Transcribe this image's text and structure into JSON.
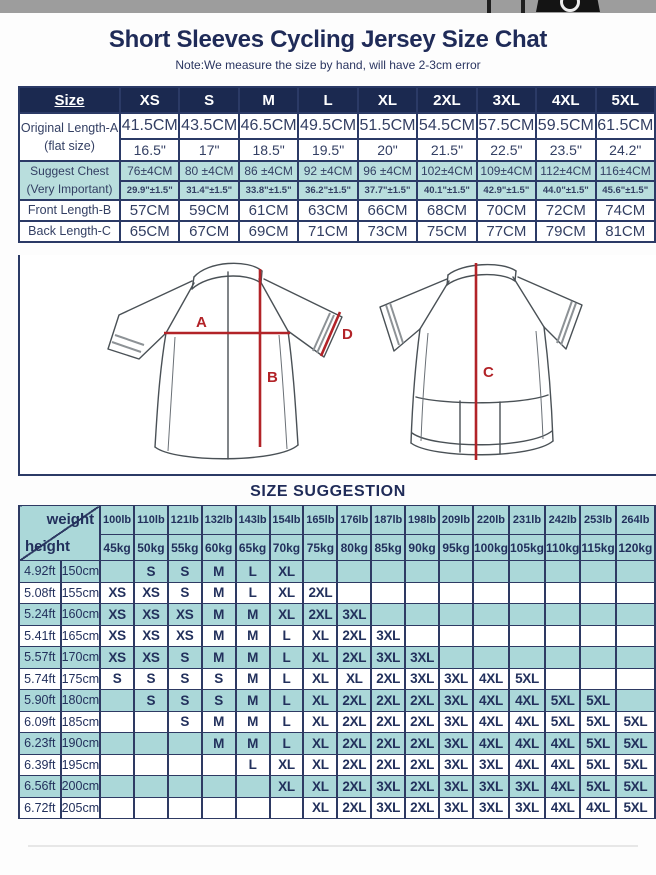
{
  "header": {
    "title": "Short Sleeves Cycling Jersey Size Chat",
    "note": "Note:We measure the size by hand, will have 2-3cm error"
  },
  "size_table": {
    "columns": [
      "Size",
      "XS",
      "S",
      "M",
      "L",
      "XL",
      "2XL",
      "3XL",
      "4XL",
      "5XL"
    ],
    "rows": [
      {
        "label_line1": "Original Length-A",
        "label_line2": "(flat size)",
        "highlight": false,
        "cm": [
          "41.5CM",
          "43.5CM",
          "46.5CM",
          "49.5CM",
          "51.5CM",
          "54.5CM",
          "57.5CM",
          "59.5CM",
          "61.5CM"
        ],
        "inch": [
          "16.5\"",
          "17\"",
          "18.5\"",
          "19.5\"",
          "20\"",
          "21.5\"",
          "22.5\"",
          "23.5\"",
          "24.2\""
        ]
      },
      {
        "label_line1": "Suggest Chest",
        "label_line2": "(Very Important)",
        "highlight": true,
        "cm": [
          "76±4CM",
          "80 ±4CM",
          "86 ±4CM",
          "92 ±4CM",
          "96 ±4CM",
          "102±4CM",
          "109±4CM",
          "112±4CM",
          "116±4CM"
        ],
        "inch": [
          "29.9\"±1.5\"",
          "31.4\"±1.5\"",
          "33.8\"±1.5\"",
          "36.2\"±1.5\"",
          "37.7\"±1.5\"",
          "40.1\"±1.5\"",
          "42.9\"±1.5\"",
          "44.0\"±1.5\"",
          "45.6\"±1.5\""
        ]
      },
      {
        "label_line1": "Front Length-B",
        "highlight": false,
        "cm": [
          "57CM",
          "59CM",
          "61CM",
          "63CM",
          "66CM",
          "68CM",
          "70CM",
          "72CM",
          "74CM"
        ]
      },
      {
        "label_line1": "Back Length-C",
        "highlight": false,
        "cm": [
          "65CM",
          "67CM",
          "69CM",
          "71CM",
          "73CM",
          "75CM",
          "77CM",
          "79CM",
          "81CM"
        ]
      }
    ]
  },
  "diagram": {
    "labels": {
      "a": "A",
      "b": "B",
      "c": "C",
      "d": "D"
    },
    "line_color": "#b22328"
  },
  "suggestion_table": {
    "heading": "SIZE SUGGESTION",
    "corner_top": "weight",
    "corner_bottom": "height",
    "weights_lb": [
      "100lb",
      "110lb",
      "121lb",
      "132lb",
      "143lb",
      "154lb",
      "165lb",
      "176lb",
      "187lb",
      "198lb",
      "209lb",
      "220lb",
      "231lb",
      "242lb",
      "253lb",
      "264lb"
    ],
    "weights_kg": [
      "45kg",
      "50kg",
      "55kg",
      "60kg",
      "65kg",
      "70kg",
      "75kg",
      "80kg",
      "85kg",
      "90kg",
      "95kg",
      "100kg",
      "105kg",
      "110kg",
      "115kg",
      "120kg"
    ],
    "rows": [
      {
        "ft": "4.92ft",
        "cm": "150cm",
        "sizes": [
          "",
          "S",
          "S",
          "M",
          "L",
          "XL",
          "",
          "",
          "",
          "",
          "",
          "",
          "",
          "",
          "",
          ""
        ]
      },
      {
        "ft": "5.08ft",
        "cm": "155cm",
        "sizes": [
          "XS",
          "XS",
          "S",
          "M",
          "L",
          "XL",
          "2XL",
          "",
          "",
          "",
          "",
          "",
          "",
          "",
          "",
          ""
        ]
      },
      {
        "ft": "5.24ft",
        "cm": "160cm",
        "sizes": [
          "XS",
          "XS",
          "XS",
          "M",
          "M",
          "XL",
          "2XL",
          "3XL",
          "",
          "",
          "",
          "",
          "",
          "",
          "",
          ""
        ]
      },
      {
        "ft": "5.41ft",
        "cm": "165cm",
        "sizes": [
          "XS",
          "XS",
          "XS",
          "M",
          "M",
          "L",
          "XL",
          "2XL",
          "3XL",
          "",
          "",
          "",
          "",
          "",
          "",
          ""
        ]
      },
      {
        "ft": "5.57ft",
        "cm": "170cm",
        "sizes": [
          "XS",
          "XS",
          "S",
          "M",
          "M",
          "L",
          "XL",
          "2XL",
          "3XL",
          "3XL",
          "",
          "",
          "",
          "",
          "",
          ""
        ]
      },
      {
        "ft": "5.74ft",
        "cm": "175cm",
        "sizes": [
          "S",
          "S",
          "S",
          "S",
          "M",
          "L",
          "XL",
          "XL",
          "2XL",
          "3XL",
          "3XL",
          "4XL",
          "5XL",
          "",
          "",
          ""
        ]
      },
      {
        "ft": "5.90ft",
        "cm": "180cm",
        "sizes": [
          "",
          "S",
          "S",
          "S",
          "M",
          "L",
          "XL",
          "2XL",
          "2XL",
          "2XL",
          "3XL",
          "4XL",
          "4XL",
          "5XL",
          "5XL",
          ""
        ]
      },
      {
        "ft": "6.09ft",
        "cm": "185cm",
        "sizes": [
          "",
          "",
          "S",
          "M",
          "M",
          "L",
          "XL",
          "2XL",
          "2XL",
          "2XL",
          "3XL",
          "4XL",
          "4XL",
          "5XL",
          "5XL",
          "5XL"
        ]
      },
      {
        "ft": "6.23ft",
        "cm": "190cm",
        "sizes": [
          "",
          "",
          "",
          "M",
          "M",
          "L",
          "XL",
          "2XL",
          "2XL",
          "2XL",
          "3XL",
          "4XL",
          "4XL",
          "4XL",
          "5XL",
          "5XL"
        ]
      },
      {
        "ft": "6.39ft",
        "cm": "195cm",
        "sizes": [
          "",
          "",
          "",
          "",
          "L",
          "XL",
          "XL",
          "2XL",
          "2XL",
          "2XL",
          "3XL",
          "3XL",
          "4XL",
          "4XL",
          "5XL",
          "5XL"
        ]
      },
      {
        "ft": "6.56ft",
        "cm": "200cm",
        "sizes": [
          "",
          "",
          "",
          "",
          "",
          "XL",
          "XL",
          "2XL",
          "3XL",
          "2XL",
          "3XL",
          "3XL",
          "3XL",
          "4XL",
          "5XL",
          "5XL"
        ]
      },
      {
        "ft": "6.72ft",
        "cm": "205cm",
        "sizes": [
          "",
          "",
          "",
          "",
          "",
          "",
          "XL",
          "2XL",
          "3XL",
          "2XL",
          "3XL",
          "3XL",
          "3XL",
          "4XL",
          "4XL",
          "5XL"
        ]
      }
    ]
  },
  "colors": {
    "navy_header": "#1b2950",
    "teal_main": "#b9dedd",
    "teal_suggestion": "#abd8d9",
    "red_line": "#b22328",
    "border_navy": "#2b3a66"
  }
}
